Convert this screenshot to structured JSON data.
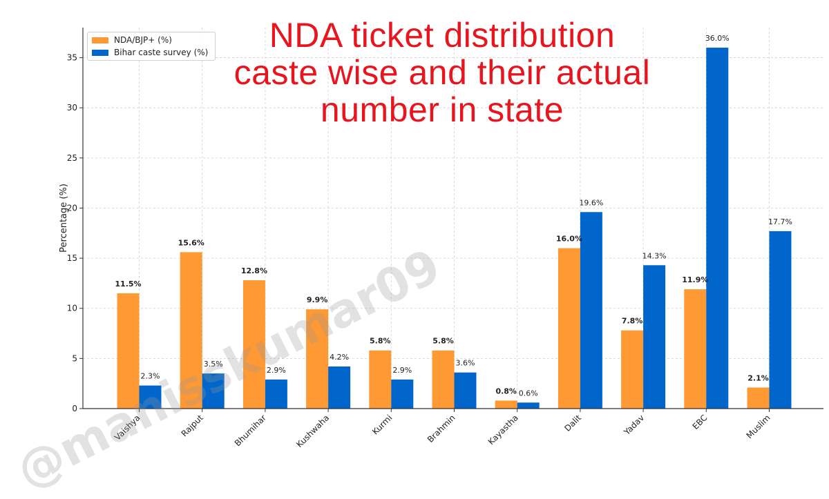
{
  "chart_data": {
    "type": "bar",
    "title": "NDA ticket distribution caste wise and their actual number in state",
    "title_lines": [
      "NDA ticket distribution",
      "caste wise and their actual",
      "number in state"
    ],
    "xlabel": "",
    "ylabel": "Percentage (%)",
    "ylim": [
      0,
      38
    ],
    "yticks": [
      0,
      5,
      10,
      15,
      20,
      25,
      30,
      35
    ],
    "grid": true,
    "legend_position": "top-left",
    "categories": [
      "Vaishya",
      "Rajput",
      "Bhumihar",
      "Kushwaha",
      "Kurmi",
      "Brahmin",
      "Kayastha",
      "Dalit",
      "Yadav",
      "EBC",
      "Muslim"
    ],
    "series": [
      {
        "name": "NDA/BJP+ (%)",
        "color": "#ff9933",
        "values": [
          11.5,
          15.6,
          12.8,
          9.9,
          5.8,
          5.8,
          0.8,
          16.0,
          7.8,
          11.9,
          2.1
        ],
        "labels": [
          "11.5%",
          "15.6%",
          "12.8%",
          "9.9%",
          "5.8%",
          "5.8%",
          "0.8%",
          "16.0%",
          "7.8%",
          "11.9%",
          "2.1%"
        ]
      },
      {
        "name": "Bihar caste survey (%)",
        "color": "#0066cc",
        "values": [
          2.3,
          3.5,
          2.9,
          4.2,
          2.9,
          3.6,
          0.6,
          19.6,
          14.3,
          36.0,
          17.7
        ],
        "labels": [
          "2.3%",
          "3.5%",
          "2.9%",
          "4.2%",
          "2.9%",
          "3.6%",
          "0.6%",
          "19.6%",
          "14.3%",
          "36.0%",
          "17.7%"
        ]
      }
    ]
  },
  "watermark": "@manisskumar09"
}
